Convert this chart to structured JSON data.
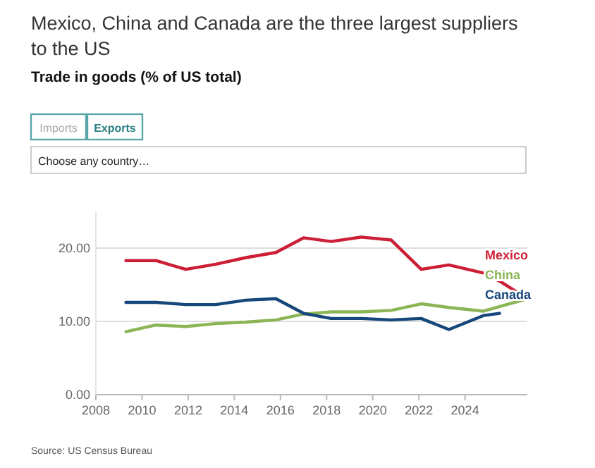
{
  "chart_data": {
    "type": "line",
    "title": "Mexico, China and Canada are the three largest suppliers to the US",
    "subtitle": "Trade in goods (% of US total)",
    "annotations": [
      "Imports",
      "Exports",
      "Choose any country…",
      "Source: US Census Bureau"
    ],
    "series": [
      {
        "name": "Mexico",
        "color": "#cc1f36",
        "x": [
          2009.3,
          2010.6,
          2011.9,
          2013.2,
          2014.5,
          2015.8,
          2017.0,
          2018.2,
          2019.5,
          2020.8,
          2022.1,
          2023.3,
          2024.8,
          2025.6,
          2026.6
        ],
        "values": [
          18.3,
          18.3,
          17.1,
          17.8,
          18.7,
          19.4,
          21.4,
          20.9,
          21.5,
          21.1,
          17.1,
          17.7,
          16.6,
          15.3,
          13.3
        ]
      },
      {
        "name": "China",
        "color": "#8cb556",
        "x": [
          2009.3,
          2010.6,
          2011.9,
          2013.2,
          2014.5,
          2015.8,
          2017.0,
          2018.2,
          2019.5,
          2020.8,
          2022.1,
          2023.3,
          2024.8,
          2026.6
        ],
        "values": [
          8.6,
          9.5,
          9.3,
          9.7,
          9.9,
          10.2,
          11.0,
          11.3,
          11.3,
          11.5,
          12.4,
          11.9,
          11.4,
          13.0
        ]
      },
      {
        "name": "Canada",
        "color": "#16477a",
        "x": [
          2009.3,
          2010.6,
          2011.9,
          2013.2,
          2014.5,
          2015.8,
          2017.0,
          2018.2,
          2019.5,
          2020.8,
          2022.1,
          2023.3,
          2024.8,
          2025.5
        ],
        "values": [
          12.6,
          12.6,
          12.3,
          12.3,
          12.9,
          13.1,
          11.1,
          10.4,
          10.4,
          10.2,
          10.4,
          8.9,
          10.8,
          11.1
        ]
      }
    ],
    "xlim": [
      2008,
      2026.7
    ],
    "xticks": [
      2008,
      2010,
      2012,
      2014,
      2016,
      2018,
      2020,
      2022,
      2024
    ],
    "ylim": [
      0,
      25
    ],
    "yticks": [
      {
        "value": 0,
        "label": "0.00"
      },
      {
        "value": 10,
        "label": "10.00"
      },
      {
        "value": 20,
        "label": "20.00"
      }
    ],
    "grid": "y",
    "legend": false,
    "marker": "none",
    "line_style": "solid"
  }
}
